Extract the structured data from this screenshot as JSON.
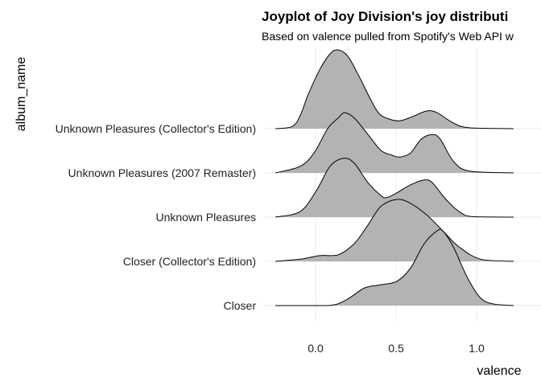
{
  "chart_data": {
    "type": "ridgeline",
    "title": "Joyplot of Joy Division's joy distributi",
    "subtitle": "Based on valence pulled from Spotify's Web API w",
    "xlabel": "valence",
    "ylabel": "album_name",
    "xlim": [
      -0.25,
      1.25
    ],
    "xticks": [
      0.0,
      0.5,
      1.0
    ],
    "xtick_labels": [
      "0.0",
      "0.5",
      "1.0"
    ],
    "grid": true,
    "fill_color": "#B3B3B3",
    "line_color": "#000000",
    "grid_color": "#EBEBEB",
    "series": [
      {
        "name": "Unknown Pleasures (Collector's Edition)",
        "x": [
          -0.25,
          -0.145,
          -0.095,
          -0.045,
          0.025,
          0.09,
          0.14,
          0.2,
          0.275,
          0.325,
          0.39,
          0.455,
          0.525,
          0.6,
          0.69,
          0.755,
          0.855,
          0.955,
          1.23
        ],
        "density": [
          0,
          0.05,
          0.3,
          0.78,
          1.33,
          1.69,
          1.78,
          1.64,
          1.15,
          0.78,
          0.36,
          0.22,
          0.18,
          0.27,
          0.4,
          0.36,
          0.13,
          0.02,
          0
        ]
      },
      {
        "name": "Unknown Pleasures (2007 Remaster)",
        "x": [
          -0.25,
          -0.095,
          -0.01,
          0.075,
          0.14,
          0.18,
          0.24,
          0.325,
          0.405,
          0.475,
          0.525,
          0.59,
          0.655,
          0.725,
          0.775,
          0.855,
          0.955,
          1.23
        ],
        "density": [
          0,
          0.15,
          0.45,
          1.0,
          1.24,
          1.36,
          1.24,
          0.87,
          0.51,
          0.4,
          0.36,
          0.45,
          0.76,
          0.87,
          0.76,
          0.27,
          0.04,
          0
        ]
      },
      {
        "name": "Unknown Pleasures",
        "x": [
          -0.25,
          -0.095,
          0.005,
          0.09,
          0.175,
          0.24,
          0.325,
          0.405,
          0.44,
          0.505,
          0.59,
          0.675,
          0.725,
          0.805,
          0.89,
          0.975,
          1.23
        ],
        "density": [
          0,
          0.13,
          0.6,
          1.15,
          1.33,
          1.22,
          0.78,
          0.49,
          0.44,
          0.55,
          0.73,
          0.84,
          0.78,
          0.42,
          0.13,
          0.01,
          0
        ]
      },
      {
        "name": "Closer (Collector's Edition)",
        "x": [
          -0.25,
          -0.095,
          0.025,
          0.14,
          0.24,
          0.325,
          0.405,
          0.505,
          0.59,
          0.69,
          0.79,
          0.89,
          1.025,
          1.23
        ],
        "density": [
          0,
          0.05,
          0.13,
          0.15,
          0.4,
          0.82,
          1.24,
          1.4,
          1.31,
          1.05,
          0.69,
          0.33,
          0.05,
          0
        ]
      },
      {
        "name": "Closer",
        "x": [
          -0.25,
          0.075,
          0.19,
          0.305,
          0.405,
          0.505,
          0.59,
          0.675,
          0.755,
          0.79,
          0.855,
          0.955,
          1.055,
          1.23
        ],
        "density": [
          0,
          0,
          0.13,
          0.4,
          0.47,
          0.55,
          0.85,
          1.4,
          1.69,
          1.69,
          1.33,
          0.55,
          0.09,
          0
        ]
      }
    ]
  }
}
